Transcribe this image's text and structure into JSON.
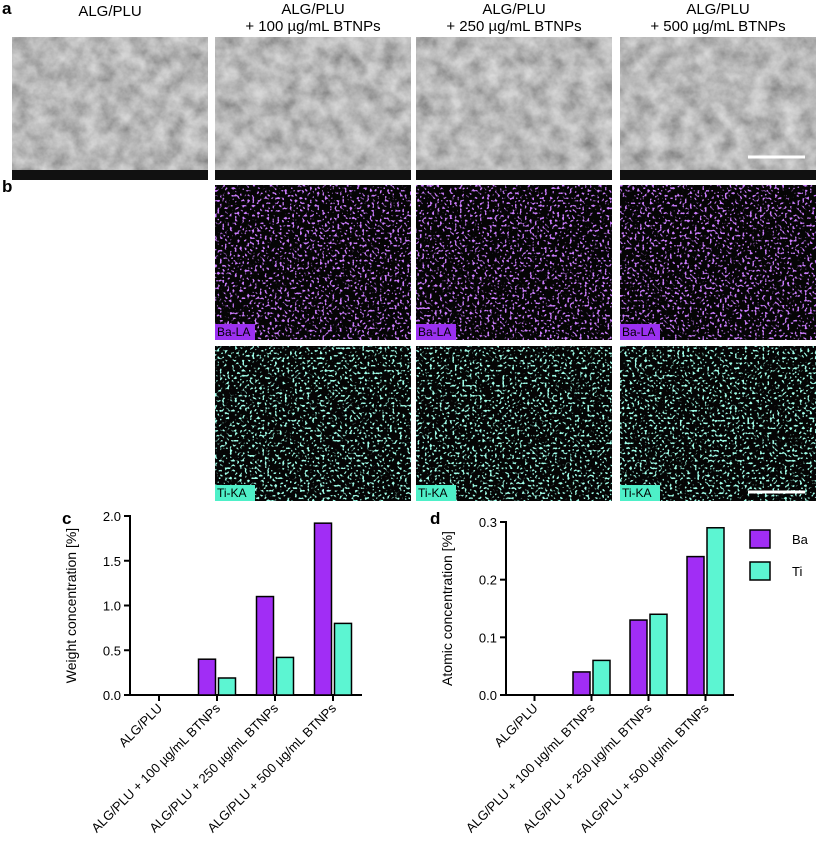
{
  "panel_labels": [
    "a",
    "b",
    "c",
    "d"
  ],
  "columns": [
    {
      "line1": "ALG/PLU"
    },
    {
      "line1": "ALG/PLU",
      "line2": "+ 100 µg/mL BTNPs"
    },
    {
      "line1": "ALG/PLU",
      "line2": "+ 250 µg/mL BTNPs"
    },
    {
      "line1": "ALG/PLU",
      "line2": "+ 500 µg/mL BTNPs"
    }
  ],
  "eds_labels": [
    "Ba-LA",
    "Ti-KA"
  ],
  "chart_data": [
    {
      "type": "bar",
      "y_label": "Weight concentration [%]",
      "categories": [
        "ALG/PLU",
        "ALG/PLU + 100 µg/mL BTNPs",
        "ALG/PLU + 250 µg/mL BTNPs",
        "ALG/PLU + 500 µg/mL BTNPs"
      ],
      "series": [
        {
          "name": "Ba",
          "color": "#a12df5",
          "values": [
            0,
            0.4,
            1.1,
            1.92
          ]
        },
        {
          "name": "Ti",
          "color": "#5cf5d2",
          "values": [
            0,
            0.19,
            0.42,
            0.8
          ]
        }
      ],
      "ylim": [
        0,
        2
      ],
      "yticks": [
        {
          "value": 0,
          "label": "0.0"
        },
        {
          "value": 0.5,
          "label": "0.5"
        },
        {
          "value": 1,
          "label": "1.0"
        },
        {
          "value": 1.5,
          "label": "1.5"
        },
        {
          "value": 2,
          "label": "2.0"
        }
      ],
      "legend": false
    },
    {
      "type": "bar",
      "y_label": "Atomic concentration [%]",
      "categories": [
        "ALG/PLU",
        "ALG/PLU + 100 µg/mL BTNPs",
        "ALG/PLU + 250 µg/mL BTNPs",
        "ALG/PLU + 500 µg/mL BTNPs"
      ],
      "series": [
        {
          "name": "Ba",
          "color": "#a12df5",
          "values": [
            0,
            0.04,
            0.13,
            0.24
          ]
        },
        {
          "name": "Ti",
          "color": "#5cf5d2",
          "values": [
            0,
            0.06,
            0.14,
            0.29
          ]
        }
      ],
      "ylim": [
        0,
        0.3
      ],
      "yticks": [
        {
          "value": 0,
          "label": "0.0"
        },
        {
          "value": 0.1,
          "label": "0.1"
        },
        {
          "value": 0.2,
          "label": "0.2"
        },
        {
          "value": 0.3,
          "label": "0.3"
        }
      ],
      "legend": true
    }
  ]
}
